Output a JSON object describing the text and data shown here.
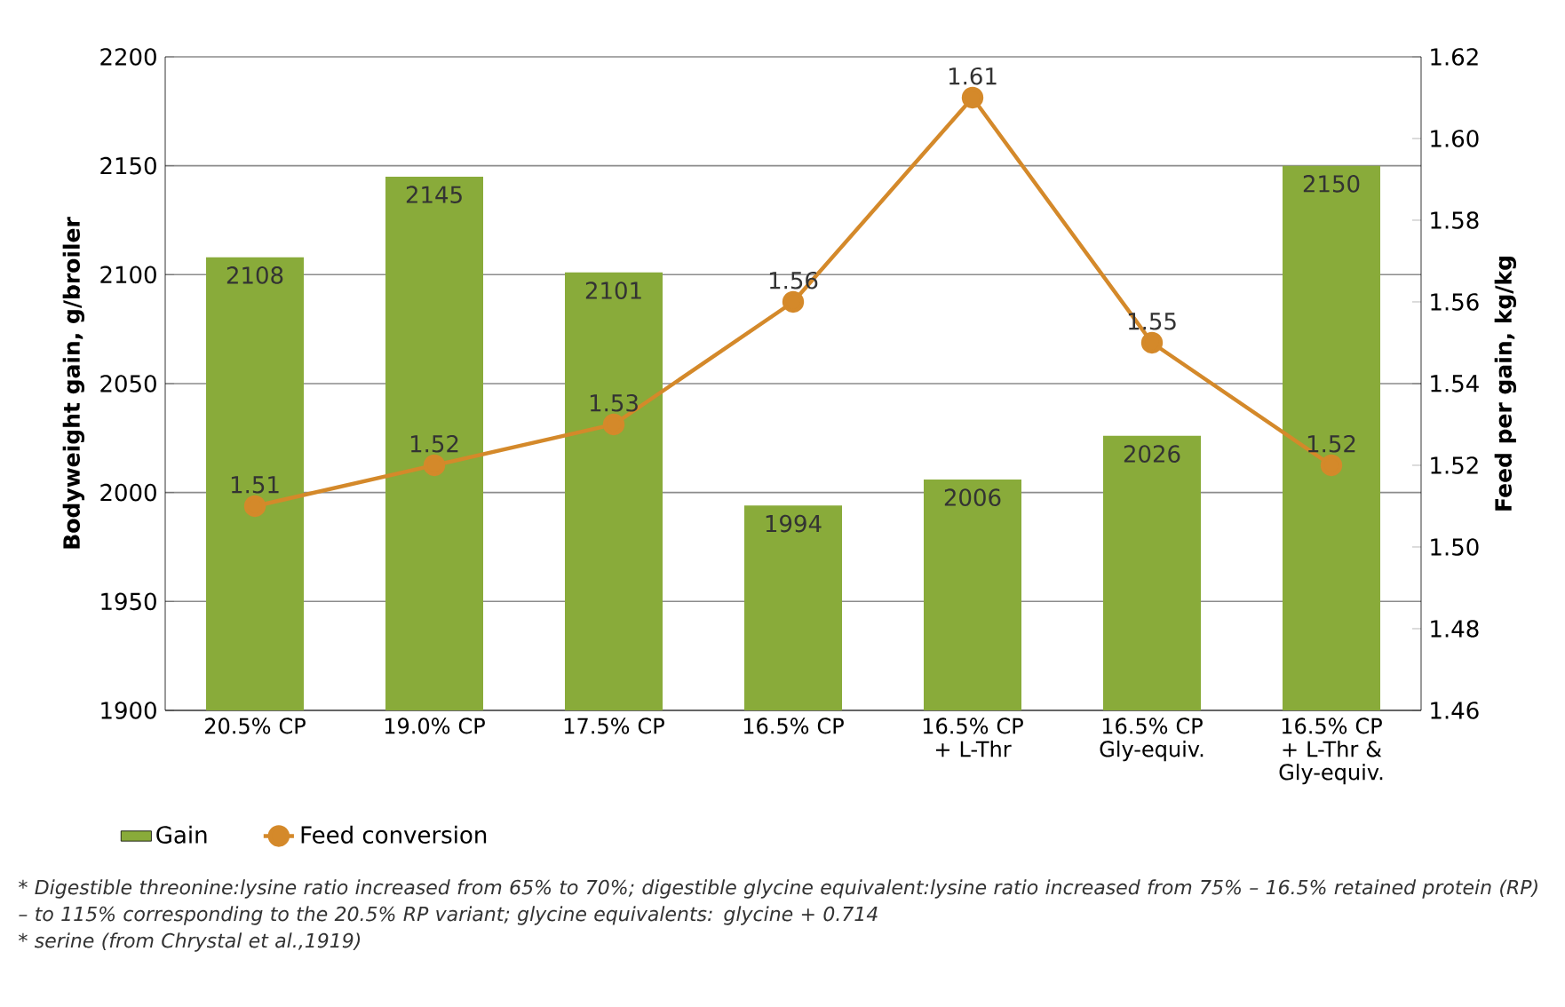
{
  "chart_data": {
    "type": "bar",
    "categories": [
      "20.5% CP",
      "19.0% CP",
      "17.5% CP",
      "16.5% CP",
      "16.5% CP + L-Thr",
      "16.5% CP Gly-equiv.",
      "16.5% CP + L-Thr & Gly-equiv."
    ],
    "series": [
      {
        "name": "Gain",
        "color": "#89ab3a",
        "values": [
          2108,
          2145,
          2101,
          1994,
          2006,
          2026,
          2150
        ]
      },
      {
        "name": "Feed conversion",
        "type": "line",
        "axis": "y2",
        "color": "#d4892a",
        "marker": "circle",
        "values": [
          1.51,
          1.52,
          1.53,
          1.56,
          1.61,
          1.55,
          1.52
        ]
      }
    ],
    "ylabel": "Bodyweight gain, g/broiler",
    "y2label": "Feed per gain, kg/kg",
    "ylim": [
      1900,
      2200
    ],
    "yticks": [
      1900,
      1950,
      2000,
      2050,
      2100,
      2150,
      2200
    ],
    "y2lim": [
      1.46,
      1.62
    ],
    "y2ticks": [
      {
        "value": 1.46,
        "label": "1.46"
      },
      {
        "value": 1.48,
        "label": "1.48"
      },
      {
        "value": 1.5,
        "label": "1.50"
      },
      {
        "value": 1.52,
        "label": "1.52"
      },
      {
        "value": 1.54,
        "label": "1.54"
      },
      {
        "value": 1.56,
        "label": "1.56"
      },
      {
        "value": 1.58,
        "label": "1.58"
      },
      {
        "value": 1.6,
        "label": "1.60"
      },
      {
        "value": 1.62,
        "label": "1.62"
      }
    ],
    "grid": "y",
    "legend": "bottom",
    "data_labels": true,
    "annotations": [
      "* Digestible threonine:lysine ratio increased from 65% to 70%; digestible glycine equivalent:lysine ratio increased from 75% – 16.5% retained protein (RP) – to 115% corresponding to the 20.5% RP variant; glycine equivalents: glycine + 0.714",
      "* serine (from Chrystal et al.,1919)"
    ]
  }
}
